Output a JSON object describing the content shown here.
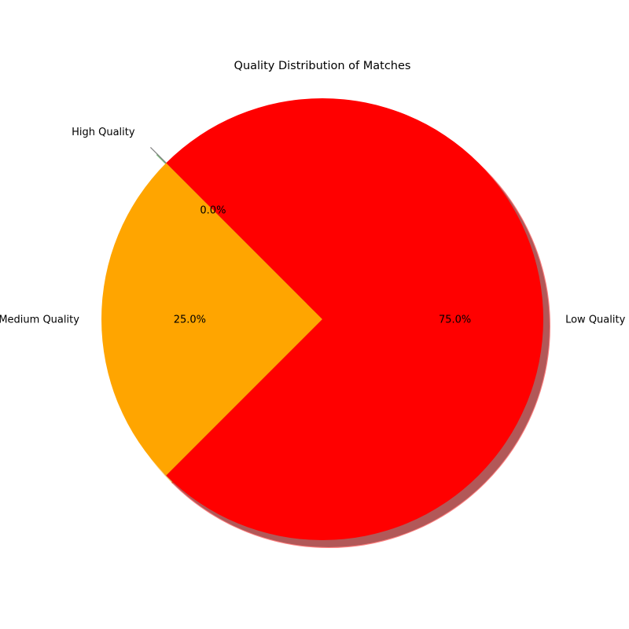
{
  "chart_data": {
    "type": "pie",
    "title": "Quality Distribution of Matches",
    "slices": [
      {
        "label": "High Quality",
        "value": 0.0,
        "pct_label": "0.0%",
        "color": "#008000"
      },
      {
        "label": "Medium Quality",
        "value": 25.0,
        "pct_label": "25.0%",
        "color": "#FFA500"
      },
      {
        "label": "Low Quality",
        "value": 75.0,
        "pct_label": "75.0%",
        "color": "#FF0000"
      }
    ],
    "start_angle_deg": 135,
    "explode": [
      0.1,
      0,
      0
    ],
    "shadow": true,
    "legend": "none"
  }
}
